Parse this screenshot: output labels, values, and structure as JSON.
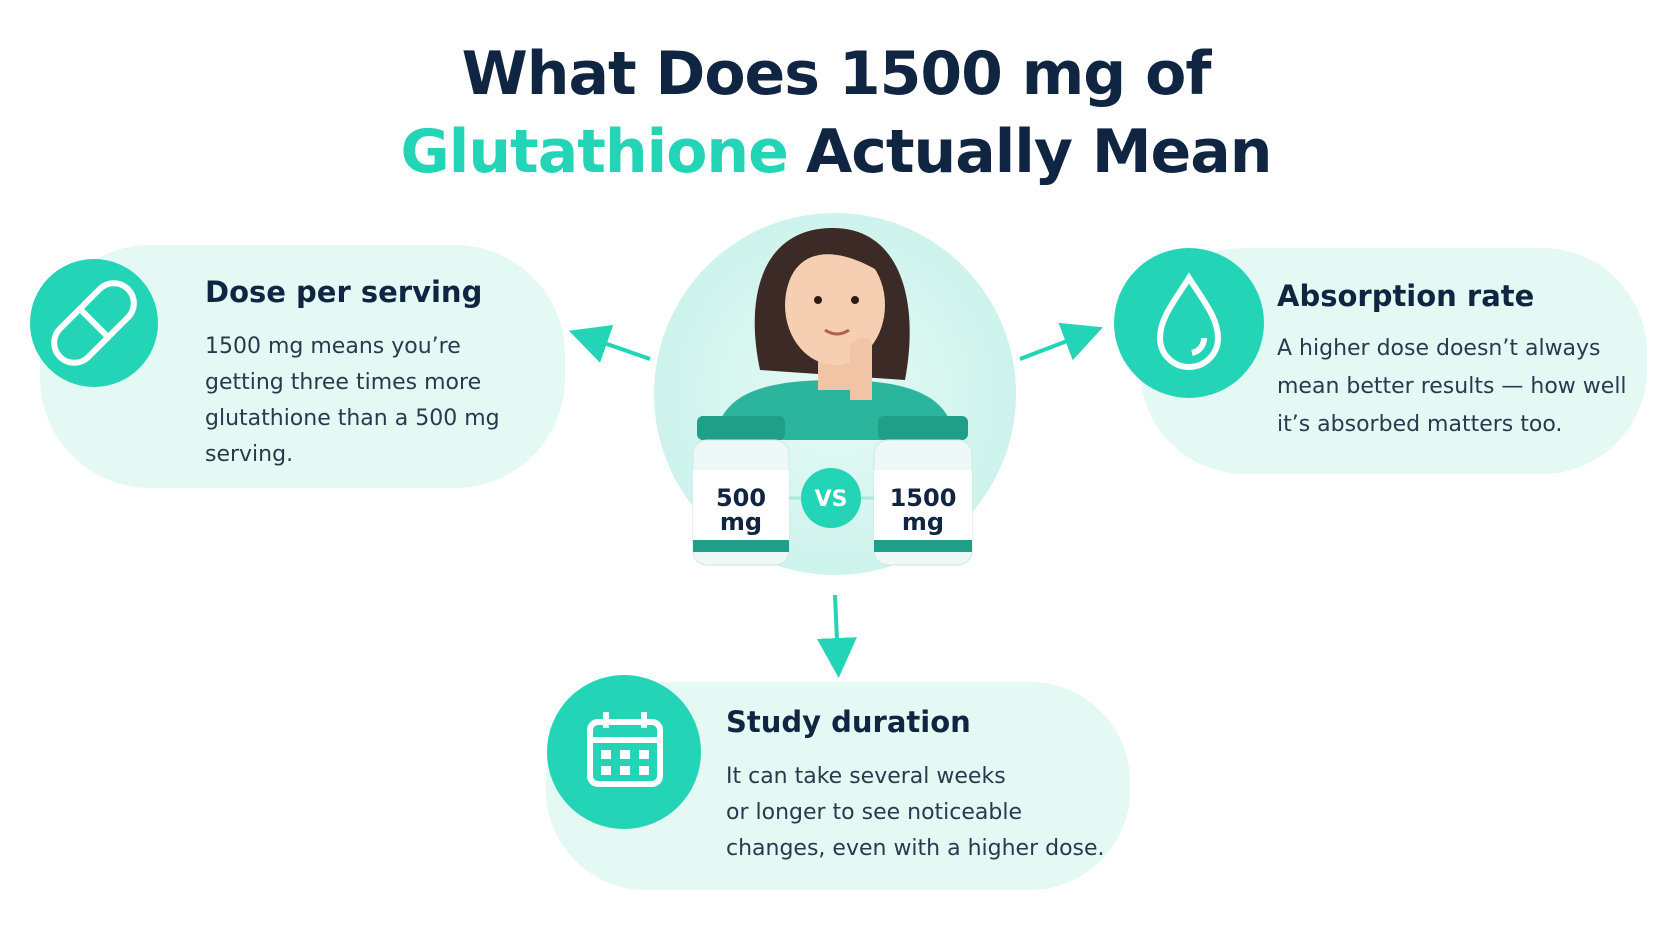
{
  "title": {
    "line1": "What Does 1500 mg of",
    "highlight": "Glutathione",
    "rest": "Actually Mean"
  },
  "cards": [
    {
      "heading": "Dose per serving",
      "lines": [
        "1500 mg means you’re",
        "getting three times more",
        "glutathione than a 500 mg",
        "serving."
      ]
    },
    {
      "heading": "Absorption rate",
      "lines": [
        "A higher dose doesn’t always",
        "mean better results — how well",
        "it’s absorbed matters too."
      ]
    },
    {
      "heading": "Study duration",
      "lines": [
        "It can take several weeks",
        "or longer to see noticeable",
        "changes, even with a higher dose."
      ]
    }
  ],
  "bottles": [
    {
      "amount": "500",
      "unit": "mg"
    },
    {
      "amount": "1500",
      "unit": "mg"
    }
  ],
  "vs": "VS"
}
